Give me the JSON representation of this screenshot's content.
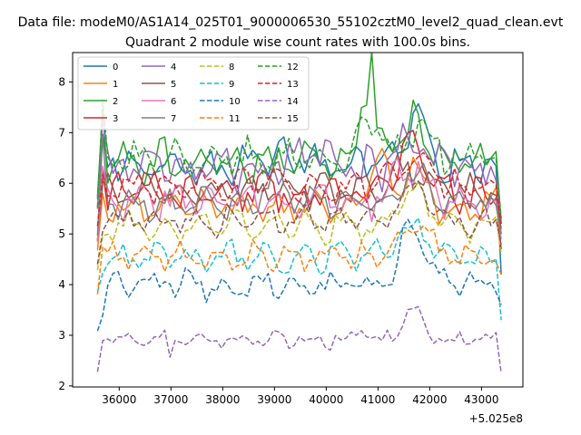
{
  "chart_data": {
    "type": "line",
    "suptitle": "Data file: modeM0/AS1A14_025T01_9000006530_55102cztM0_level2_quad_clean.evt",
    "title": "Quadrant 2 module wise count rates with 100.0s bins.",
    "xlabel": "",
    "ylabel": "",
    "x_offset_label": "+5.025e8",
    "xlim": [
      35100,
      43800
    ],
    "ylim": [
      1.98,
      8.58
    ],
    "x_ticks": [
      36000,
      37000,
      38000,
      39000,
      40000,
      41000,
      42000,
      43000
    ],
    "x_tick_labels": [
      "36000",
      "37000",
      "38000",
      "39000",
      "40000",
      "41000",
      "42000",
      "43000"
    ],
    "y_ticks": [
      2,
      3,
      4,
      5,
      6,
      7,
      8
    ],
    "y_tick_labels": [
      "2",
      "3",
      "4",
      "5",
      "6",
      "7",
      "8"
    ],
    "x_start": 35580,
    "x_step": 100,
    "n_points": 79,
    "legend_position": "top-left",
    "series": [
      {
        "name": "0",
        "color": "#1f77b4",
        "dash": "solid",
        "level": 6.35,
        "amp": 0.28,
        "amp2": 0.22,
        "bumps": [
          [
            39000,
            0.25,
            500
          ],
          [
            41700,
            0.95,
            350
          ]
        ],
        "spikes": [
          [
            35650,
            0.6
          ]
        ],
        "end": 4.2,
        "seed": 1
      },
      {
        "name": "1",
        "color": "#ff7f0e",
        "dash": "solid",
        "level": 5.55,
        "amp": 0.22,
        "amp2": 0.2,
        "bumps": [
          [
            41000,
            0.9,
            300
          ],
          [
            41700,
            0.7,
            300
          ]
        ],
        "spikes": [
          [
            35650,
            0.4
          ]
        ],
        "end": 5.0,
        "seed": 2
      },
      {
        "name": "2",
        "color": "#2ca02c",
        "dash": "solid",
        "level": 6.45,
        "amp": 0.3,
        "amp2": 0.22,
        "bumps": [
          [
            40800,
            1.4,
            200
          ],
          [
            41700,
            0.7,
            400
          ]
        ],
        "spikes": [
          [
            35650,
            0.9
          ],
          [
            40850,
            0.6
          ]
        ],
        "end": 5.2,
        "seed": 3
      },
      {
        "name": "3",
        "color": "#d62728",
        "dash": "solid",
        "level": 5.8,
        "amp": 0.25,
        "amp2": 0.2,
        "bumps": [
          [
            41600,
            0.9,
            350
          ]
        ],
        "spikes": [
          [
            35650,
            0.5
          ]
        ],
        "end": 4.7,
        "seed": 4
      },
      {
        "name": "4",
        "color": "#9467bd",
        "dash": "solid",
        "level": 6.25,
        "amp": 0.3,
        "amp2": 0.22,
        "bumps": [
          [
            39700,
            0.4,
            500
          ],
          [
            41700,
            0.7,
            400
          ]
        ],
        "spikes": [
          [
            35650,
            1.0
          ]
        ],
        "end": 5.3,
        "seed": 5
      },
      {
        "name": "5",
        "color": "#8c564b",
        "dash": "solid",
        "level": 5.85,
        "amp": 0.22,
        "amp2": 0.2,
        "bumps": [
          [
            41500,
            0.5,
            400
          ]
        ],
        "spikes": [],
        "end": 5.1,
        "seed": 6
      },
      {
        "name": "6",
        "color": "#e377c2",
        "dash": "solid",
        "level": 5.65,
        "amp": 0.25,
        "amp2": 0.2,
        "bumps": [
          [
            41600,
            0.7,
            400
          ]
        ],
        "spikes": [
          [
            35650,
            0.5
          ]
        ],
        "end": 4.9,
        "seed": 7
      },
      {
        "name": "7",
        "color": "#7f7f7f",
        "dash": "solid",
        "level": 5.6,
        "amp": 0.22,
        "amp2": 0.18,
        "bumps": [
          [
            39000,
            0.6,
            250
          ],
          [
            41700,
            0.6,
            350
          ]
        ],
        "spikes": [
          [
            35650,
            1.3
          ]
        ],
        "end": 5.0,
        "seed": 8
      },
      {
        "name": "8",
        "color": "#bcbd22",
        "dash": "dashed",
        "level": 5.15,
        "amp": 0.2,
        "amp2": 0.18,
        "bumps": [
          [
            41700,
            0.7,
            400
          ]
        ],
        "spikes": [],
        "end": 4.6,
        "seed": 9
      },
      {
        "name": "9",
        "color": "#17becf",
        "dash": "dashed",
        "level": 4.55,
        "amp": 0.2,
        "amp2": 0.18,
        "bumps": [
          [
            41700,
            0.6,
            400
          ]
        ],
        "spikes": [],
        "end": 3.3,
        "seed": 10
      },
      {
        "name": "10",
        "color": "#1f77b4",
        "dash": "dashed",
        "level": 4.0,
        "amp": 0.2,
        "amp2": 0.18,
        "bumps": [
          [
            41700,
            1.2,
            350
          ]
        ],
        "spikes": [
          [
            35650,
            -0.3
          ]
        ],
        "end": 3.6,
        "seed": 11
      },
      {
        "name": "11",
        "color": "#ff7f0e",
        "dash": "dashed",
        "level": 4.55,
        "amp": 0.18,
        "amp2": 0.18,
        "bumps": [
          [
            41700,
            0.7,
            350
          ]
        ],
        "spikes": [],
        "end": 4.2,
        "seed": 12
      },
      {
        "name": "12",
        "color": "#2ca02c",
        "dash": "dashed",
        "level": 6.5,
        "amp": 0.25,
        "amp2": 0.22,
        "bumps": [
          [
            40800,
            0.9,
            250
          ],
          [
            41800,
            0.6,
            350
          ]
        ],
        "spikes": [
          [
            35650,
            0.8
          ]
        ],
        "end": 5.3,
        "seed": 13
      },
      {
        "name": "13",
        "color": "#d62728",
        "dash": "dashed",
        "level": 5.95,
        "amp": 0.22,
        "amp2": 0.2,
        "bumps": [
          [
            41700,
            0.6,
            400
          ]
        ],
        "spikes": [],
        "end": 5.2,
        "seed": 14
      },
      {
        "name": "14",
        "color": "#9467bd",
        "dash": "dashed",
        "level": 2.9,
        "amp": 0.12,
        "amp2": 0.1,
        "bumps": [
          [
            41700,
            0.6,
            300
          ],
          [
            40700,
            0.3,
            200
          ]
        ],
        "spikes": [
          [
            37000,
            -0.5
          ]
        ],
        "end": 2.25,
        "seed": 15
      },
      {
        "name": "15",
        "color": "#8c564b",
        "dash": "dashed",
        "level": 5.25,
        "amp": 0.2,
        "amp2": 0.18,
        "bumps": [
          [
            41700,
            0.6,
            400
          ]
        ],
        "spikes": [],
        "end": 4.8,
        "seed": 16
      }
    ]
  }
}
